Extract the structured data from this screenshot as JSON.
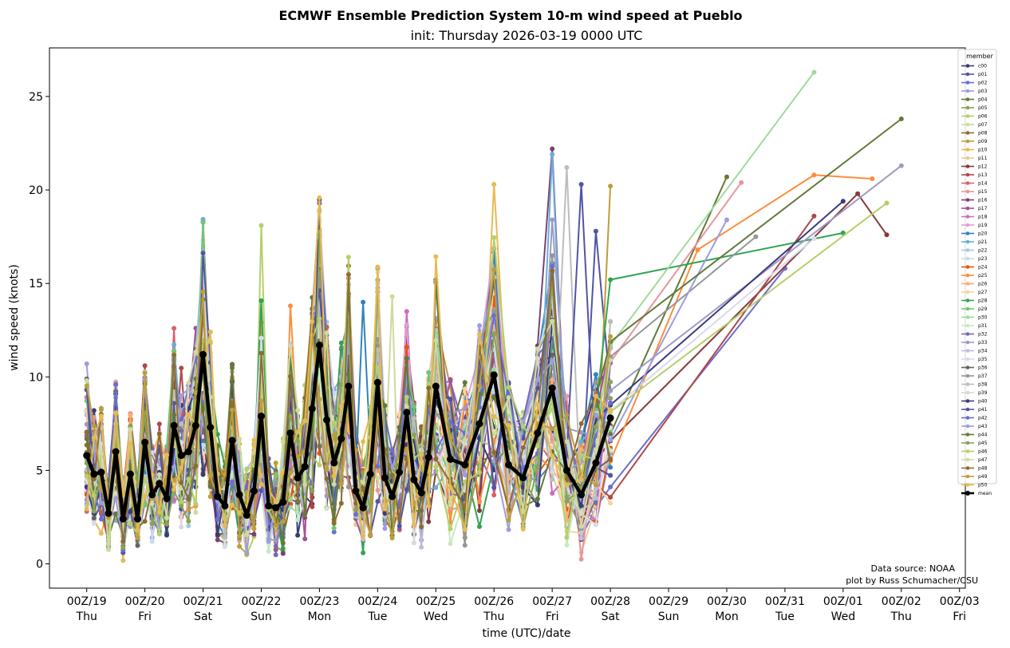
{
  "chart_data": {
    "type": "line",
    "title": "ECMWF Ensemble Prediction System 10-m wind speed at Pueblo",
    "subtitle": "init: Thursday 2026-03-19 0000 UTC",
    "xlabel": "time (UTC)/date",
    "ylabel": "wind speed (knots)",
    "ylim": [
      -1.3,
      27.6
    ],
    "xlim": [
      -0.64,
      15.1
    ],
    "yticks": [
      0,
      5,
      10,
      15,
      20,
      25
    ],
    "xtick_labels": [
      {
        "line1": "00Z/19",
        "line2": "Thu"
      },
      {
        "line1": "00Z/20",
        "line2": "Fri"
      },
      {
        "line1": "00Z/21",
        "line2": "Sat"
      },
      {
        "line1": "00Z/22",
        "line2": "Sun"
      },
      {
        "line1": "00Z/23",
        "line2": "Mon"
      },
      {
        "line1": "00Z/24",
        "line2": "Tue"
      },
      {
        "line1": "00Z/25",
        "line2": "Wed"
      },
      {
        "line1": "00Z/26",
        "line2": "Thu"
      },
      {
        "line1": "00Z/27",
        "line2": "Fri"
      },
      {
        "line1": "00Z/28",
        "line2": "Sat"
      },
      {
        "line1": "00Z/29",
        "line2": "Sun"
      },
      {
        "line1": "00Z/30",
        "line2": "Mon"
      },
      {
        "line1": "00Z/31",
        "line2": "Tue"
      },
      {
        "line1": "00Z/01",
        "line2": "Wed"
      },
      {
        "line1": "00Z/02",
        "line2": "Thu"
      },
      {
        "line1": "00Z/03",
        "line2": "Fri"
      }
    ],
    "x_days": [
      0,
      0.125,
      0.25,
      0.375,
      0.5,
      0.625,
      0.75,
      0.875,
      1,
      1.125,
      1.25,
      1.375,
      1.5,
      1.625,
      1.75,
      1.875,
      2,
      2.125,
      2.25,
      2.375,
      2.5,
      2.625,
      2.75,
      2.875,
      3,
      3.125,
      3.25,
      3.375,
      3.5,
      3.625,
      3.75,
      3.875,
      4,
      4.125,
      4.25,
      4.375,
      4.5,
      4.625,
      4.75,
      4.875,
      5,
      5.125,
      5.25,
      5.375,
      5.5,
      5.625,
      5.75,
      5.875,
      6,
      6.25,
      6.5,
      6.75,
      7,
      7.25,
      7.5,
      7.75,
      8,
      8.25,
      8.5,
      8.75,
      9,
      9.25,
      9.5,
      9.75,
      10,
      10.25,
      10.5,
      10.75,
      11,
      11.25,
      11.5,
      11.75,
      12,
      12.25,
      12.5,
      12.75,
      13,
      13.25,
      13.5,
      13.75,
      14,
      14.25,
      14.5,
      14.75,
      15
    ],
    "legend": {
      "title": "member",
      "position": "upper right",
      "entries": [
        "c00",
        "p01",
        "p02",
        "p03",
        "p04",
        "p05",
        "p06",
        "p07",
        "p08",
        "p09",
        "p10",
        "p11",
        "p12",
        "p13",
        "p14",
        "p15",
        "p16",
        "p17",
        "p18",
        "p19",
        "p20",
        "p21",
        "p22",
        "p23",
        "p24",
        "p25",
        "p26",
        "p27",
        "p28",
        "p29",
        "p30",
        "p31",
        "p32",
        "p33",
        "p34",
        "p35",
        "p36",
        "p37",
        "p38",
        "p39",
        "p40",
        "p41",
        "p42",
        "p43",
        "p44",
        "p45",
        "p46",
        "p47",
        "p48",
        "p49",
        "p50",
        "mean"
      ]
    },
    "member_colors": [
      "#393b79",
      "#5254a3",
      "#6b6ecf",
      "#9c9ede",
      "#637939",
      "#8ca252",
      "#b5cf6b",
      "#cedb9c",
      "#8c6d31",
      "#bd9e39",
      "#e7ba52",
      "#e7cb94",
      "#843c39",
      "#ad494a",
      "#d6616b",
      "#e7969c",
      "#7b4173",
      "#a55194",
      "#ce6dbd",
      "#de9ed6",
      "#3182bd",
      "#6baed6",
      "#9ecae1",
      "#c6dbef",
      "#e6550d",
      "#fd8d3c",
      "#fdae6b",
      "#fdd0a2",
      "#31a354",
      "#74c476",
      "#a1d99b",
      "#c7e9c0",
      "#756bb1",
      "#9e9ac8",
      "#bcbddc",
      "#dadaeb",
      "#636363",
      "#969696",
      "#bdbdbd",
      "#d9d9d9",
      "#393b79",
      "#5254a3",
      "#6b6ecf",
      "#9c9ede",
      "#637939",
      "#8ca252",
      "#b5cf6b",
      "#cedb9c",
      "#8c6d31",
      "#bd9e39",
      "#e7ba52"
    ],
    "mean_color": "#000000",
    "series_mean": [
      5.8,
      4.8,
      4.9,
      2.7,
      6.0,
      2.4,
      4.8,
      2.4,
      6.5,
      3.7,
      4.3,
      3.5,
      7.4,
      5.8,
      6.0,
      7.4,
      11.2,
      7.3,
      3.6,
      3.1,
      6.6,
      3.7,
      2.6,
      3.9,
      7.9,
      3.1,
      3.0,
      3.3,
      7.0,
      4.6,
      5.2,
      8.3,
      11.7,
      7.7,
      5.4,
      6.7,
      9.5,
      3.9,
      3.0,
      4.8,
      9.7,
      4.6,
      3.6,
      4.9,
      8.1,
      4.5,
      3.8,
      5.7,
      9.5,
      5.6,
      5.3,
      7.5,
      10.1,
      5.3,
      4.6,
      7.0,
      9.4,
      5.0,
      3.7,
      5.4,
      7.8
    ],
    "spikes": [
      {
        "member": 30,
        "x": 12.4,
        "y": 26.3
      },
      {
        "member": 44,
        "x": 14.0,
        "y": 23.8
      },
      {
        "member": 16,
        "x": 8.0,
        "y": 22.2
      },
      {
        "member": 21,
        "x": 8.0,
        "y": 21.9
      },
      {
        "member": 33,
        "x": 14.0,
        "y": 21.3
      },
      {
        "member": 38,
        "x": 8.2,
        "y": 21.2
      },
      {
        "member": 4,
        "x": 11.0,
        "y": 20.7
      },
      {
        "member": 25,
        "x": 12.4,
        "y": 20.8
      },
      {
        "member": 25,
        "x": 13.5,
        "y": 20.6
      },
      {
        "member": 15,
        "x": 11.25,
        "y": 20.4
      },
      {
        "member": 10,
        "x": 7.0,
        "y": 20.3
      },
      {
        "member": 41,
        "x": 8.5,
        "y": 20.3
      },
      {
        "member": 9,
        "x": 9.0,
        "y": 20.2
      },
      {
        "member": 12,
        "x": 13.25,
        "y": 19.8
      },
      {
        "member": 40,
        "x": 13.0,
        "y": 19.4
      },
      {
        "member": 46,
        "x": 13.75,
        "y": 19.3
      },
      {
        "member": 6,
        "x": 3.0,
        "y": 18.1
      },
      {
        "member": 13,
        "x": 12.5,
        "y": 18.6
      },
      {
        "member": 35,
        "x": 12.6,
        "y": 17.4
      },
      {
        "member": 37,
        "x": 11.5,
        "y": 17.5
      },
      {
        "member": 12,
        "x": 13.75,
        "y": 17.6
      },
      {
        "member": 28,
        "x": 13.0,
        "y": 17.7
      },
      {
        "member": 1,
        "x": 8.75,
        "y": 17.8
      },
      {
        "member": 25,
        "x": 10.5,
        "y": 16.8
      },
      {
        "member": 20,
        "x": 4.0,
        "y": 15.5
      },
      {
        "member": 5,
        "x": 5.0,
        "y": 15.8
      },
      {
        "member": 16,
        "x": 6.0,
        "y": 15.2
      },
      {
        "member": 7,
        "x": 5.25,
        "y": 14.3
      },
      {
        "member": 2,
        "x": 12.0,
        "y": 15.8
      },
      {
        "member": 43,
        "x": 11.0,
        "y": 18.4
      },
      {
        "member": 33,
        "x": 8.0,
        "y": 18.4
      },
      {
        "member": 13,
        "x": 1.0,
        "y": 10.6
      },
      {
        "member": 3,
        "x": 0.0,
        "y": 10.7
      },
      {
        "member": 10,
        "x": 2.0,
        "y": 11.1
      },
      {
        "member": 25,
        "x": 3.5,
        "y": 13.8
      },
      {
        "member": 20,
        "x": 4.75,
        "y": 14.0
      },
      {
        "member": 14,
        "x": 6.0,
        "y": 12.6
      },
      {
        "member": 26,
        "x": 7.0,
        "y": 12.7
      },
      {
        "member": 28,
        "x": 9.0,
        "y": 15.2
      }
    ],
    "credits": [
      "Data source: NOAA",
      "plot by Russ Schumacher/CSU"
    ]
  }
}
